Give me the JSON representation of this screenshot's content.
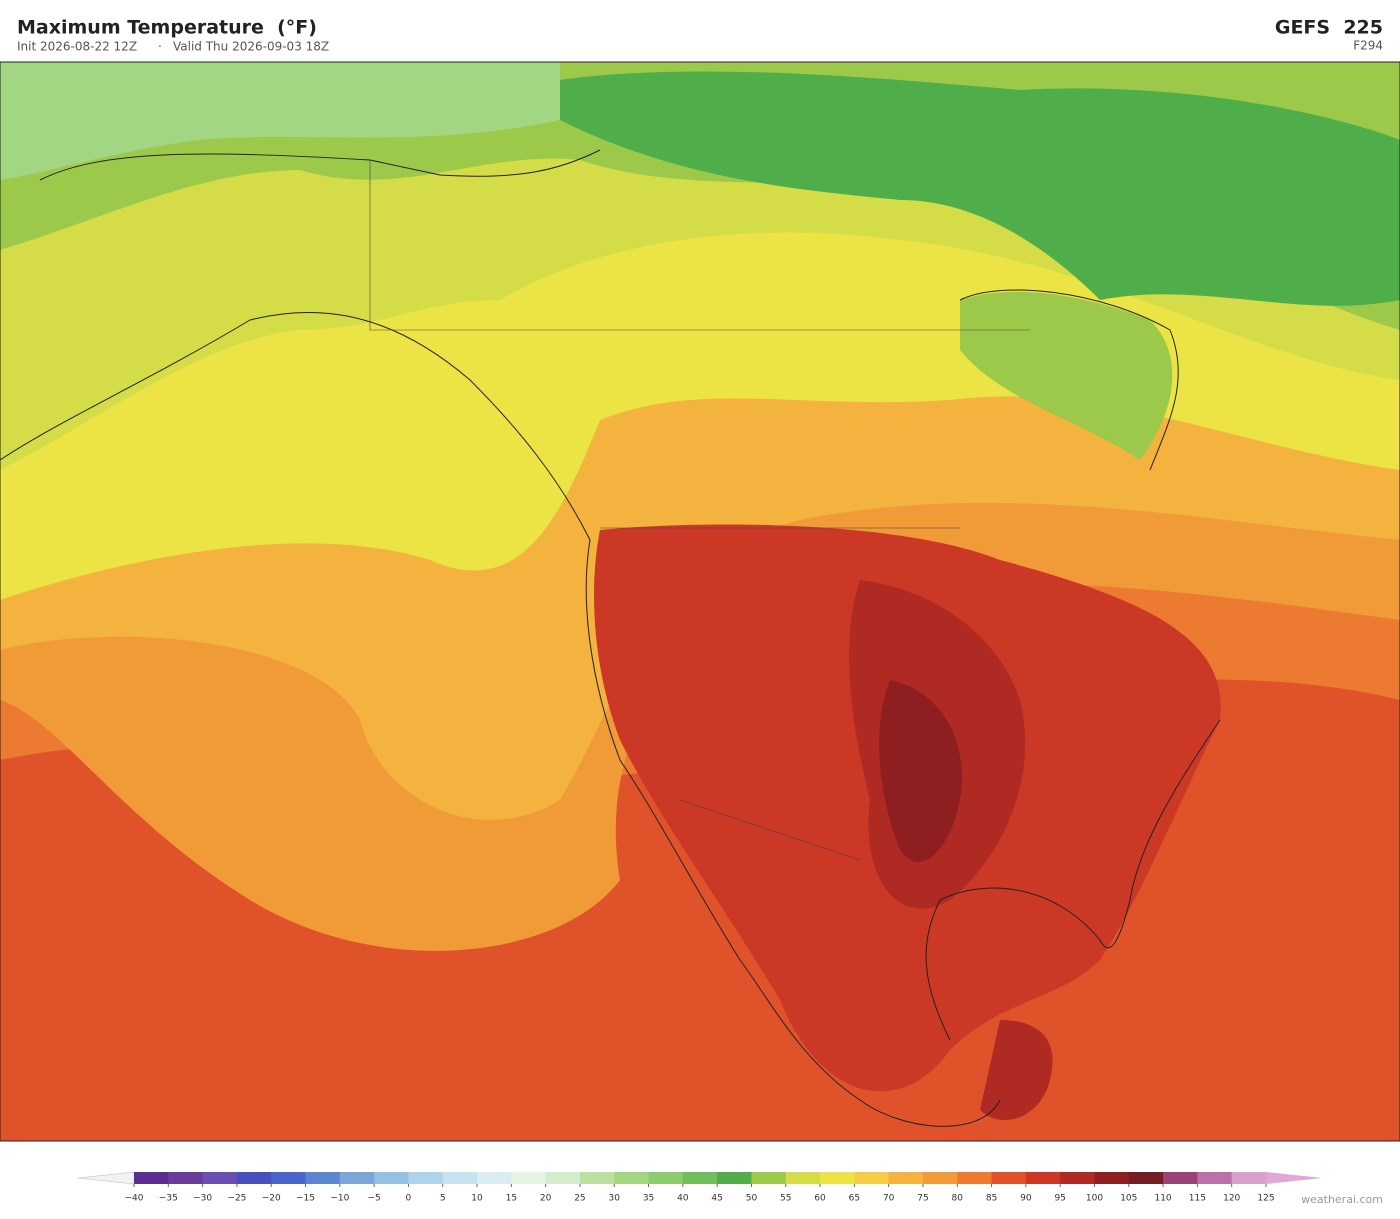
{
  "header": {
    "title": "Maximum Temperature  (°F)",
    "init": "Init 2026-08-22 12Z",
    "separator": "·",
    "valid": "Valid Thu 2026-09-03 18Z",
    "model": "GEFS  225",
    "forecast_hour": "F294"
  },
  "colorbar": {
    "labels": [
      "−40",
      "−35",
      "−30",
      "−25",
      "−20",
      "−15",
      "−10",
      "−5",
      "0",
      "5",
      "10",
      "15",
      "20",
      "25",
      "30",
      "35",
      "40",
      "45",
      "50",
      "55",
      "60",
      "65",
      "70",
      "75",
      "80",
      "85",
      "90",
      "95",
      "100",
      "105",
      "110",
      "115",
      "120",
      "125"
    ],
    "colors": [
      "#5a2d8f",
      "#6a3c9a",
      "#6a4fb2",
      "#4a4fc0",
      "#4a66cc",
      "#5d86d0",
      "#7aa6d8",
      "#93c0e3",
      "#aed4ec",
      "#c6e3f0",
      "#daeef2",
      "#e6f4e6",
      "#d4eccb",
      "#bde0a0",
      "#a2d683",
      "#8ccc6e",
      "#6fbf5c",
      "#4fae4a",
      "#9cc94a",
      "#d4dc48",
      "#ece345",
      "#f4cc45",
      "#f4b23e",
      "#f09a38",
      "#ec7a30",
      "#e0532a",
      "#cc3826",
      "#b02a24",
      "#8e1e20",
      "#761c24",
      "#9a4276",
      "#bc70a8",
      "#d8a0cc"
    ],
    "under_color": "#f2f2f2",
    "over_color": "#e0a8d6"
  },
  "watermark": "weatherai.com"
}
